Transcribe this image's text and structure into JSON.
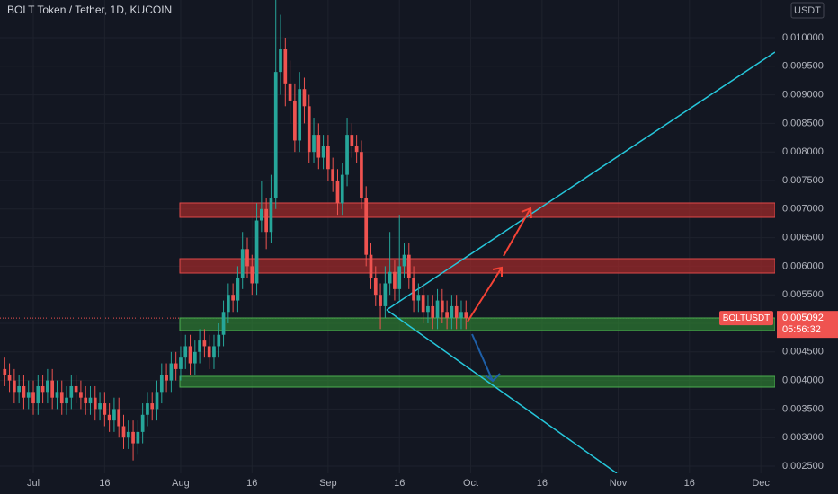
{
  "chart_data": {
    "type": "candlestick",
    "title": "BOLT Token / Tether, 1D, KUCOIN",
    "currency": "USDT",
    "x": [
      -6,
      -5,
      -4,
      -3,
      -2,
      -1,
      0,
      1,
      2,
      3,
      4,
      5,
      6,
      7,
      8,
      9,
      10,
      11,
      12,
      13,
      14,
      15,
      16,
      17,
      18,
      19,
      20,
      21,
      22,
      23,
      24,
      25,
      26,
      27,
      28,
      29,
      30,
      31,
      32,
      33,
      34,
      35,
      36,
      37,
      38,
      39,
      40,
      41,
      42,
      43,
      44,
      45,
      46,
      47,
      48,
      49,
      50,
      51,
      52,
      53,
      54,
      55,
      56,
      57,
      58,
      59,
      60,
      61,
      62,
      63,
      64,
      65,
      66,
      67,
      68,
      69,
      70,
      71,
      72,
      73,
      74,
      75,
      76,
      77,
      78,
      79,
      80,
      81,
      82,
      83,
      84,
      85,
      86,
      87,
      88,
      89,
      90,
      91
    ],
    "open": [
      0.0042,
      0.0041,
      0.004,
      0.0038,
      0.0039,
      0.0037,
      0.0038,
      0.0036,
      0.0039,
      0.0038,
      0.004,
      0.0037,
      0.0038,
      0.0036,
      0.0037,
      0.0039,
      0.0038,
      0.0037,
      0.0036,
      0.0037,
      0.0035,
      0.0036,
      0.0034,
      0.0033,
      0.0035,
      0.0032,
      0.003,
      0.0031,
      0.0029,
      0.0031,
      0.0034,
      0.0036,
      0.0035,
      0.0038,
      0.0041,
      0.004,
      0.0043,
      0.0042,
      0.0044,
      0.0046,
      0.0043,
      0.0045,
      0.0047,
      0.0046,
      0.0044,
      0.0046,
      0.0048,
      0.0052,
      0.0055,
      0.0054,
      0.0058,
      0.0063,
      0.006,
      0.0057,
      0.0068,
      0.007,
      0.0066,
      0.0072,
      0.0094,
      0.0098,
      0.0092,
      0.0089,
      0.0082,
      0.0091,
      0.0088,
      0.008,
      0.0083,
      0.0079,
      0.0081,
      0.0077,
      0.0075,
      0.0071,
      0.0076,
      0.0083,
      0.0081,
      0.008,
      0.0072,
      0.0062,
      0.0058,
      0.0055,
      0.0053,
      0.0057,
      0.0059,
      0.0056,
      0.006,
      0.0062,
      0.0058,
      0.0054,
      0.0055,
      0.0052,
      0.0053,
      0.0051,
      0.0054,
      0.0052,
      0.0051,
      0.0053,
      0.0051,
      0.0052
    ],
    "high": [
      0.0044,
      0.0043,
      0.0042,
      0.0041,
      0.0041,
      0.004,
      0.004,
      0.0041,
      0.0041,
      0.0042,
      0.0042,
      0.004,
      0.004,
      0.0039,
      0.0041,
      0.0041,
      0.004,
      0.0039,
      0.0039,
      0.0039,
      0.0038,
      0.0038,
      0.0036,
      0.0037,
      0.0037,
      0.0034,
      0.0033,
      0.0033,
      0.0033,
      0.0036,
      0.0038,
      0.0038,
      0.004,
      0.0043,
      0.0043,
      0.0045,
      0.0045,
      0.0046,
      0.0048,
      0.0048,
      0.0047,
      0.0049,
      0.0049,
      0.0048,
      0.0048,
      0.005,
      0.0054,
      0.0057,
      0.0057,
      0.006,
      0.0066,
      0.0065,
      0.0062,
      0.0071,
      0.0075,
      0.0072,
      0.0076,
      0.0108,
      0.0104,
      0.01,
      0.0096,
      0.0092,
      0.0094,
      0.0093,
      0.009,
      0.0086,
      0.0085,
      0.0083,
      0.0083,
      0.0079,
      0.0077,
      0.0078,
      0.0086,
      0.0085,
      0.0083,
      0.0082,
      0.0074,
      0.0064,
      0.006,
      0.0057,
      0.006,
      0.0066,
      0.0061,
      0.0069,
      0.0064,
      0.0064,
      0.006,
      0.0057,
      0.0057,
      0.0055,
      0.0055,
      0.0056,
      0.0056,
      0.0054,
      0.0055,
      0.0055,
      0.0054,
      0.0054
    ],
    "low": [
      0.0039,
      0.0038,
      0.0036,
      0.0036,
      0.0035,
      0.0035,
      0.0034,
      0.0034,
      0.0036,
      0.0036,
      0.0035,
      0.0035,
      0.0034,
      0.0034,
      0.0035,
      0.0036,
      0.0035,
      0.0034,
      0.0034,
      0.0033,
      0.0033,
      0.0032,
      0.0031,
      0.0031,
      0.003,
      0.0028,
      0.0028,
      0.0026,
      0.0027,
      0.0029,
      0.0032,
      0.0033,
      0.0033,
      0.0036,
      0.0038,
      0.0038,
      0.004,
      0.004,
      0.0042,
      0.0041,
      0.0041,
      0.0043,
      0.0044,
      0.0042,
      0.0042,
      0.0044,
      0.0046,
      0.005,
      0.0052,
      0.0052,
      0.0056,
      0.0058,
      0.0055,
      0.0055,
      0.0066,
      0.0063,
      0.0064,
      0.007,
      0.009,
      0.0088,
      0.0085,
      0.008,
      0.008,
      0.0085,
      0.0078,
      0.0078,
      0.0077,
      0.0077,
      0.0075,
      0.0073,
      0.0069,
      0.0069,
      0.0074,
      0.0079,
      0.0078,
      0.007,
      0.006,
      0.0056,
      0.0053,
      0.0049,
      0.0051,
      0.0055,
      0.0054,
      0.0054,
      0.0058,
      0.0056,
      0.0052,
      0.0052,
      0.005,
      0.005,
      0.0049,
      0.0049,
      0.005,
      0.0049,
      0.0049,
      0.0049,
      0.0049,
      0.0049
    ],
    "close": [
      0.0041,
      0.004,
      0.0038,
      0.0039,
      0.0037,
      0.0038,
      0.0036,
      0.0039,
      0.0038,
      0.004,
      0.0037,
      0.0038,
      0.0036,
      0.0037,
      0.0039,
      0.0038,
      0.0037,
      0.0036,
      0.0037,
      0.0035,
      0.0036,
      0.0034,
      0.0033,
      0.0035,
      0.0032,
      0.003,
      0.0031,
      0.0029,
      0.0031,
      0.0034,
      0.0036,
      0.0035,
      0.0038,
      0.0041,
      0.004,
      0.0043,
      0.0042,
      0.0044,
      0.0046,
      0.0043,
      0.0045,
      0.0047,
      0.0046,
      0.0044,
      0.0046,
      0.0048,
      0.0052,
      0.0055,
      0.0054,
      0.0058,
      0.0063,
      0.006,
      0.0057,
      0.0068,
      0.007,
      0.0066,
      0.0072,
      0.0094,
      0.0098,
      0.0092,
      0.0089,
      0.0082,
      0.0091,
      0.0088,
      0.008,
      0.0083,
      0.0079,
      0.0081,
      0.0077,
      0.0075,
      0.0071,
      0.0076,
      0.0083,
      0.0081,
      0.008,
      0.0072,
      0.0062,
      0.0058,
      0.0055,
      0.0053,
      0.0057,
      0.0059,
      0.0056,
      0.006,
      0.0062,
      0.0058,
      0.0054,
      0.0055,
      0.0052,
      0.0053,
      0.0051,
      0.0054,
      0.0052,
      0.0051,
      0.0053,
      0.0051,
      0.0052,
      0.005092
    ],
    "up_color": "#26a69a",
    "down_color": "#ef5350",
    "xlim": [
      -7,
      156
    ],
    "xticks": [
      {
        "value": 0,
        "label": "Jul"
      },
      {
        "value": 15,
        "label": "16"
      },
      {
        "value": 31,
        "label": "Aug"
      },
      {
        "value": 46,
        "label": "16"
      },
      {
        "value": 62,
        "label": "Sep"
      },
      {
        "value": 77,
        "label": "16"
      },
      {
        "value": 92,
        "label": "Oct"
      },
      {
        "value": 107,
        "label": "16"
      },
      {
        "value": 123,
        "label": "Nov"
      },
      {
        "value": 138,
        "label": "16"
      },
      {
        "value": 153,
        "label": "Dec"
      }
    ],
    "ylim": [
      0.002013,
      0.01066
    ],
    "yticks": [
      {
        "value": 0.0025,
        "label": "0.002500"
      },
      {
        "value": 0.003,
        "label": "0.003000"
      },
      {
        "value": 0.0035,
        "label": "0.003500"
      },
      {
        "value": 0.004,
        "label": "0.004000"
      },
      {
        "value": 0.0045,
        "label": "0.004500"
      },
      {
        "value": 0.005,
        "label": "0.005000"
      },
      {
        "value": 0.0055,
        "label": "0.005500"
      },
      {
        "value": 0.006,
        "label": "0.006000"
      },
      {
        "value": 0.0065,
        "label": "0.006500"
      },
      {
        "value": 0.007,
        "label": "0.007000"
      },
      {
        "value": 0.0075,
        "label": "0.007500"
      },
      {
        "value": 0.008,
        "label": "0.008000"
      },
      {
        "value": 0.0085,
        "label": "0.008500"
      },
      {
        "value": 0.009,
        "label": "0.009000"
      },
      {
        "value": 0.0095,
        "label": "0.009500"
      },
      {
        "value": 0.01,
        "label": "0.010000"
      }
    ],
    "grid": true,
    "last_price": {
      "symbol": "BOLTUSDT",
      "value": 0.005092,
      "countdown": "05:56:32"
    }
  }
}
